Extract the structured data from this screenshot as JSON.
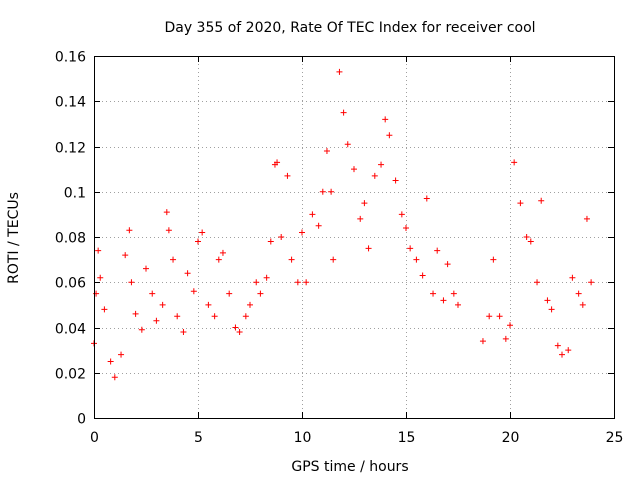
{
  "chart_data": {
    "type": "scatter",
    "title": "Day 355 of 2020, Rate Of TEC Index for receiver cool",
    "xlabel": "GPS time / hours",
    "ylabel": "ROTI / TECUs",
    "xlim": [
      0,
      25
    ],
    "ylim": [
      0,
      0.16
    ],
    "x_ticks": [
      "0",
      "5",
      "10",
      "15",
      "20",
      "25"
    ],
    "y_ticks": [
      "0",
      "0.02",
      "0.04",
      "0.06",
      "0.08",
      "0.1",
      "0.12",
      "0.14",
      "0.16"
    ],
    "grid": true,
    "marker": "plus",
    "color": "#ff0000",
    "data_gap_hours": [
      17.6,
      18.6
    ],
    "series": [
      {
        "x": [
          0.0,
          0.1,
          0.2,
          0.3,
          0.5,
          0.8,
          1.0,
          1.3,
          1.5,
          1.7,
          1.8,
          2.0,
          2.3,
          2.5,
          2.8,
          3.0,
          3.3,
          3.5,
          3.6,
          3.8,
          4.0,
          4.3,
          4.5,
          4.8,
          5.0,
          5.2,
          5.5,
          5.8,
          6.0,
          6.2,
          6.5,
          6.8,
          7.0,
          7.3,
          7.5,
          7.8,
          8.0,
          8.3,
          8.5,
          8.7,
          8.8,
          9.0,
          9.3,
          9.5,
          9.8,
          10.0,
          10.2,
          10.5,
          10.8,
          11.0,
          11.2,
          11.4,
          11.5,
          11.8,
          12.0,
          12.2,
          12.5,
          12.8,
          13.0,
          13.2,
          13.5,
          13.8,
          14.0,
          14.2,
          14.5,
          14.8,
          15.0,
          15.2,
          15.5,
          15.8,
          16.0,
          16.3,
          16.5,
          16.8,
          17.0,
          17.3,
          17.5,
          18.7,
          19.0,
          19.2,
          19.5,
          19.8,
          20.0,
          20.2,
          20.5,
          20.8,
          21.0,
          21.3,
          21.5,
          21.8,
          22.0,
          22.3,
          22.5,
          22.8,
          23.0,
          23.3,
          23.5,
          23.7,
          23.9
        ],
        "y": [
          0.033,
          0.055,
          0.074,
          0.062,
          0.048,
          0.025,
          0.018,
          0.028,
          0.072,
          0.083,
          0.06,
          0.046,
          0.039,
          0.066,
          0.055,
          0.043,
          0.05,
          0.091,
          0.083,
          0.07,
          0.045,
          0.038,
          0.064,
          0.056,
          0.078,
          0.082,
          0.05,
          0.045,
          0.07,
          0.073,
          0.055,
          0.04,
          0.038,
          0.045,
          0.05,
          0.06,
          0.055,
          0.062,
          0.078,
          0.112,
          0.113,
          0.08,
          0.107,
          0.07,
          0.06,
          0.082,
          0.06,
          0.09,
          0.085,
          0.1,
          0.118,
          0.1,
          0.07,
          0.153,
          0.135,
          0.121,
          0.11,
          0.088,
          0.095,
          0.075,
          0.107,
          0.112,
          0.132,
          0.125,
          0.105,
          0.09,
          0.084,
          0.075,
          0.07,
          0.063,
          0.097,
          0.055,
          0.074,
          0.052,
          0.068,
          0.055,
          0.05,
          0.034,
          0.045,
          0.07,
          0.045,
          0.035,
          0.041,
          0.113,
          0.095,
          0.08,
          0.078,
          0.06,
          0.096,
          0.052,
          0.048,
          0.032,
          0.028,
          0.03,
          0.062,
          0.055,
          0.05,
          0.088,
          0.06
        ]
      }
    ]
  }
}
